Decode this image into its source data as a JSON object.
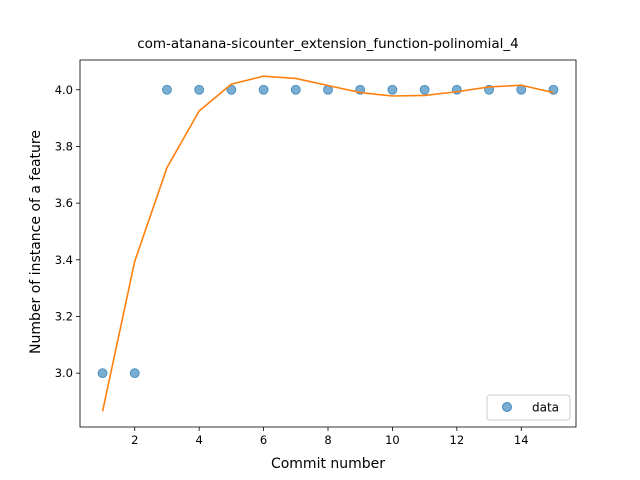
{
  "chart_data": {
    "type": "scatter",
    "title": "com-atanana-sicounter_extension_function-polinomial_4",
    "xlabel": "Commit number",
    "ylabel": "Number of instance of a feature",
    "xlim": [
      0.3,
      15.7
    ],
    "ylim": [
      2.81,
      4.105
    ],
    "xticks": [
      2,
      4,
      6,
      8,
      10,
      12,
      14
    ],
    "yticks": [
      3.0,
      3.2,
      3.4,
      3.6,
      3.8,
      4.0
    ],
    "ytick_labels": [
      "3.0",
      "3.2",
      "3.4",
      "3.6",
      "3.8",
      "4.0"
    ],
    "grid": false,
    "legend_position": "lower-right",
    "series": [
      {
        "name": "data",
        "kind": "scatter",
        "color": "#1f77b4",
        "x": [
          1,
          2,
          3,
          4,
          5,
          6,
          7,
          8,
          9,
          10,
          11,
          12,
          13,
          14,
          15
        ],
        "y": [
          3.0,
          3.0,
          4.0,
          4.0,
          4.0,
          4.0,
          4.0,
          4.0,
          4.0,
          4.0,
          4.0,
          4.0,
          4.0,
          4.0,
          4.0
        ]
      },
      {
        "kind": "line",
        "color": "#ff7f0e",
        "x": [
          1,
          2,
          3,
          4,
          5,
          6,
          7,
          8,
          9,
          10,
          11,
          12,
          13,
          14,
          15
        ],
        "y": [
          2.865,
          3.395,
          3.725,
          3.925,
          4.02,
          4.048,
          4.04,
          4.015,
          3.99,
          3.978,
          3.98,
          3.993,
          4.01,
          4.016,
          3.99
        ]
      }
    ]
  }
}
